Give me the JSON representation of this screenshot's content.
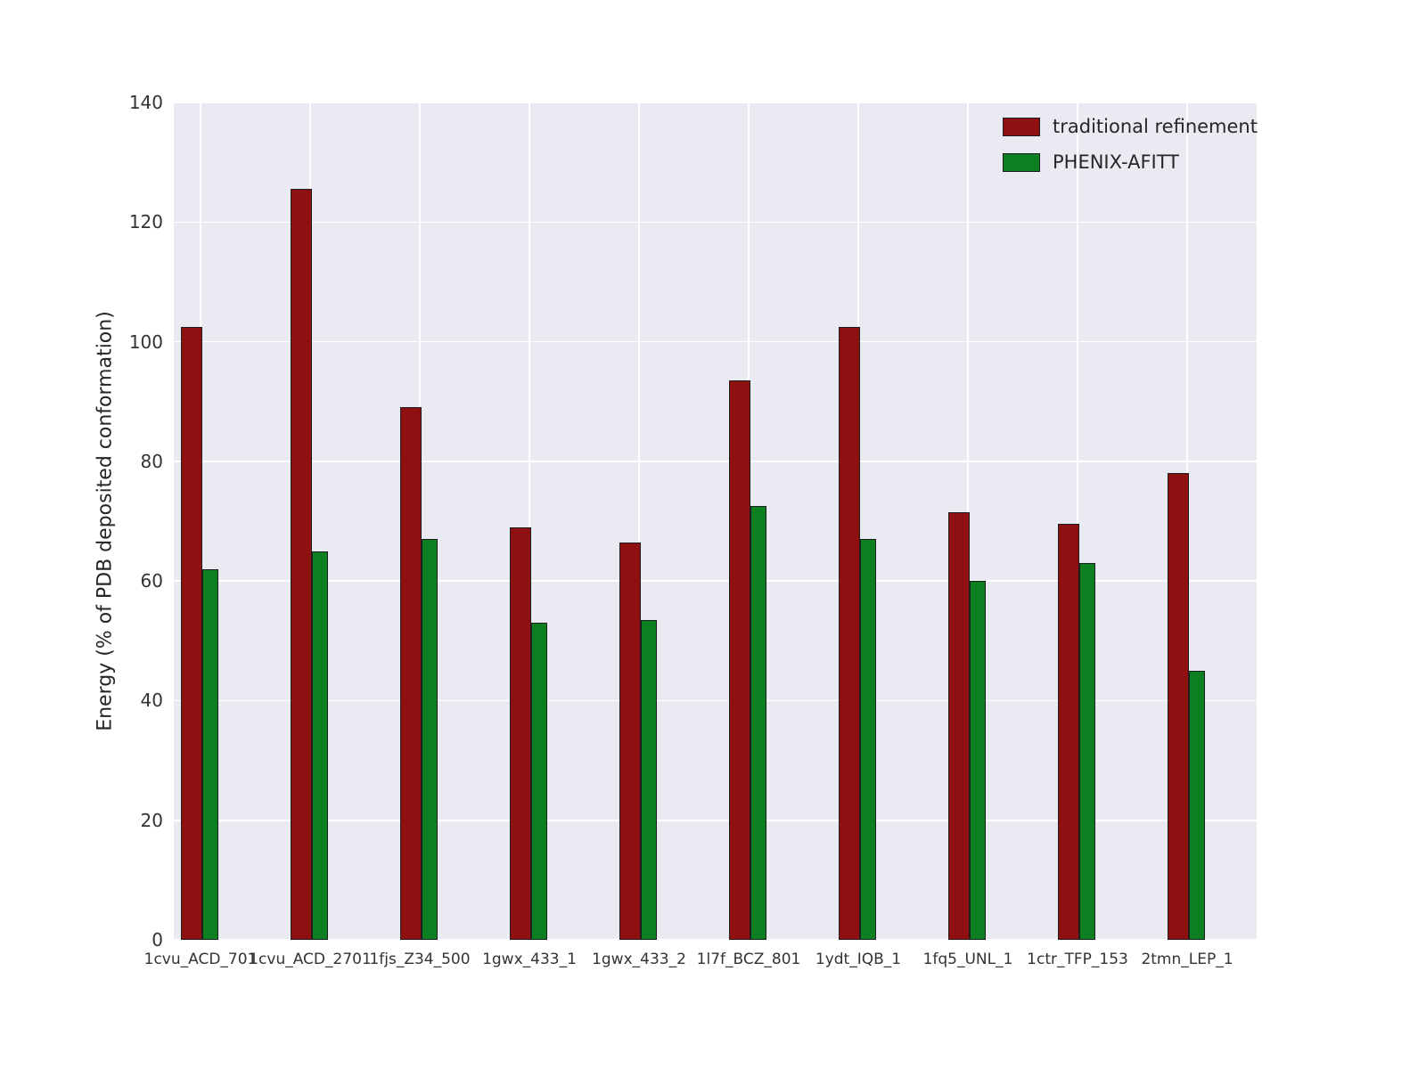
{
  "chart_data": {
    "type": "bar",
    "title": "",
    "xlabel": "",
    "ylabel": "Energy (% of PDB deposited conformation)",
    "ylim": [
      0,
      140
    ],
    "yticks": [
      0,
      20,
      40,
      60,
      80,
      100,
      120,
      140
    ],
    "grid": true,
    "plot_background": "#eaeaf2",
    "grid_color": "#ffffff",
    "bar_edge_color": "#1f1f1f",
    "legend_position": "upper right",
    "categories": [
      "1cvu_ACD_701",
      "1cvu_ACD_2701",
      "1fjs_Z34_500",
      "1gwx_433_1",
      "1gwx_433_2",
      "1l7f_BCZ_801",
      "1ydt_IQB_1",
      "1fq5_UNL_1",
      "1ctr_TFP_153",
      "2tmn_LEP_1"
    ],
    "series": [
      {
        "name": "traditional refinement",
        "color": "#8e1010",
        "values": [
          102.5,
          125.5,
          89,
          69,
          66.5,
          93.5,
          102.5,
          71.5,
          69.5,
          78
        ]
      },
      {
        "name": "PHENIX-AFITT",
        "color": "#0c8020",
        "values": [
          62,
          65,
          67,
          53,
          53.5,
          72.5,
          67,
          60,
          63,
          45
        ]
      }
    ]
  }
}
